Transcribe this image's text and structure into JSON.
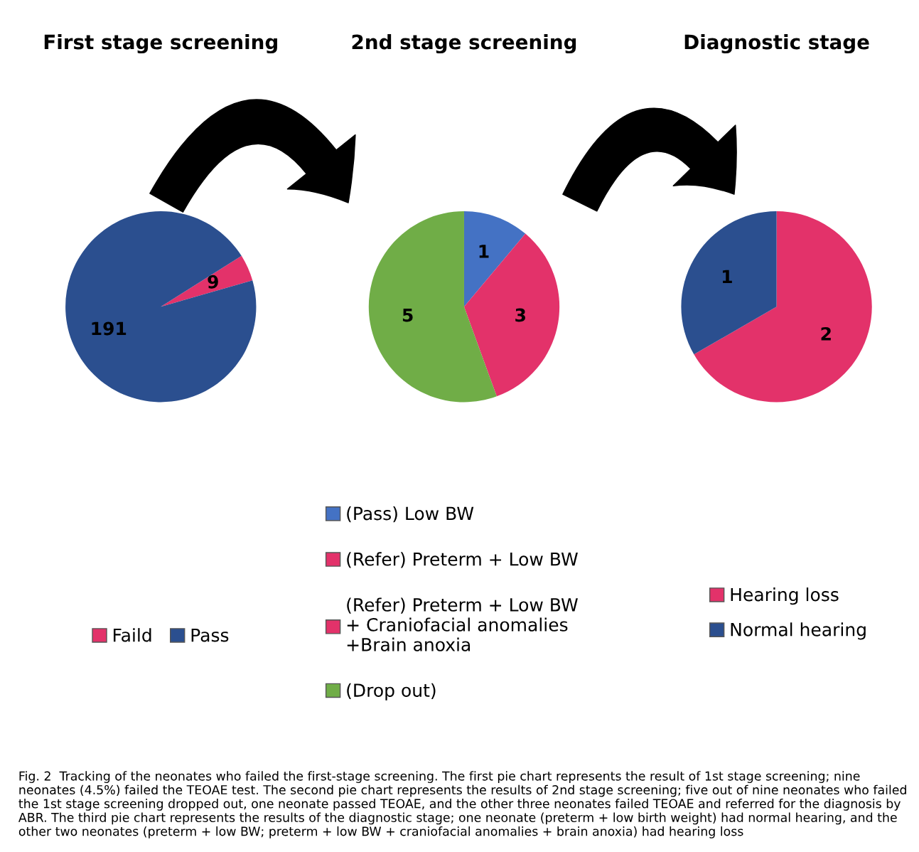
{
  "chart_data": [
    {
      "type": "pie",
      "title": "First stage screening",
      "categories": [
        "Faild",
        "Pass"
      ],
      "values": [
        9,
        191
      ],
      "colors": [
        "#e3326a",
        "#2b4f8f"
      ],
      "data_labels": true,
      "legend": "bottom",
      "annotations": [
        "Fig. 2  Tracking of the neonates who failed the first-stage screening. The first pie chart represents the result of 1st stage screening; nine neonates (4.5%) failed the TEOAE test. The second pie chart represents the results of 2nd stage screening; five out of nine neonates who failed the 1st stage screening dropped out, one neonate passed TEOAE, and the other three neonates failed TEOAE and referred for the diagnosis by ABR. The third pie chart represents the results of the diagnostic stage; one neonate (preterm + low birth weight) had normal hearing, and the other two neonates (preterm + low BW; preterm + low BW + craniofacial anomalies + brain anoxia) had hearing loss"
      ]
    },
    {
      "type": "pie",
      "title": "2nd stage screening",
      "categories": [
        "(Pass) Low BW",
        "(Refer) Preterm + Low BW",
        "(Refer) Preterm + Low BW\n+ Craniofacial anomalies\n+Brain anoxia",
        "(Drop out)"
      ],
      "values": [
        1,
        3,
        0,
        5
      ],
      "value_labels": [
        "1",
        "3",
        null,
        "5"
      ],
      "colors": [
        "#4472c4",
        "#e3326a",
        "#e3326a",
        "#70ad47"
      ],
      "legend": "bottom"
    },
    {
      "type": "pie",
      "title": "Diagnostic stage",
      "categories": [
        "Hearing loss",
        "Normal hearing"
      ],
      "values": [
        2,
        1
      ],
      "colors": [
        "#e3326a",
        "#2b4f8f"
      ],
      "data_labels": true,
      "legend": "bottom"
    }
  ]
}
